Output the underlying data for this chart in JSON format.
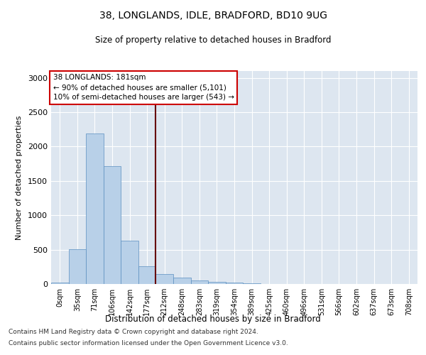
{
  "title": "38, LONGLANDS, IDLE, BRADFORD, BD10 9UG",
  "subtitle": "Size of property relative to detached houses in Bradford",
  "xlabel": "Distribution of detached houses by size in Bradford",
  "ylabel": "Number of detached properties",
  "footnote1": "Contains HM Land Registry data © Crown copyright and database right 2024.",
  "footnote2": "Contains public sector information licensed under the Open Government Licence v3.0.",
  "annotation_line1": "38 LONGLANDS: 181sqm",
  "annotation_line2": "← 90% of detached houses are smaller (5,101)",
  "annotation_line3": "10% of semi-detached houses are larger (543) →",
  "bar_color": "#b8d0e8",
  "bar_edge_color": "#5a8fc0",
  "annotation_box_edge": "#cc0000",
  "property_line_color": "#660000",
  "background_color": "#dde6f0",
  "categories": [
    "0sqm",
    "35sqm",
    "71sqm",
    "106sqm",
    "142sqm",
    "177sqm",
    "212sqm",
    "248sqm",
    "283sqm",
    "319sqm",
    "354sqm",
    "389sqm",
    "425sqm",
    "460sqm",
    "496sqm",
    "531sqm",
    "566sqm",
    "602sqm",
    "637sqm",
    "673sqm",
    "708sqm"
  ],
  "values": [
    20,
    510,
    2190,
    1720,
    630,
    255,
    140,
    90,
    55,
    35,
    18,
    10,
    5,
    3,
    2,
    1,
    0,
    0,
    0,
    0,
    0
  ],
  "ylim": [
    0,
    3100
  ],
  "yticks": [
    0,
    500,
    1000,
    1500,
    2000,
    2500,
    3000
  ],
  "property_bar_index": 5,
  "figsize": [
    6.0,
    5.0
  ],
  "dpi": 100
}
